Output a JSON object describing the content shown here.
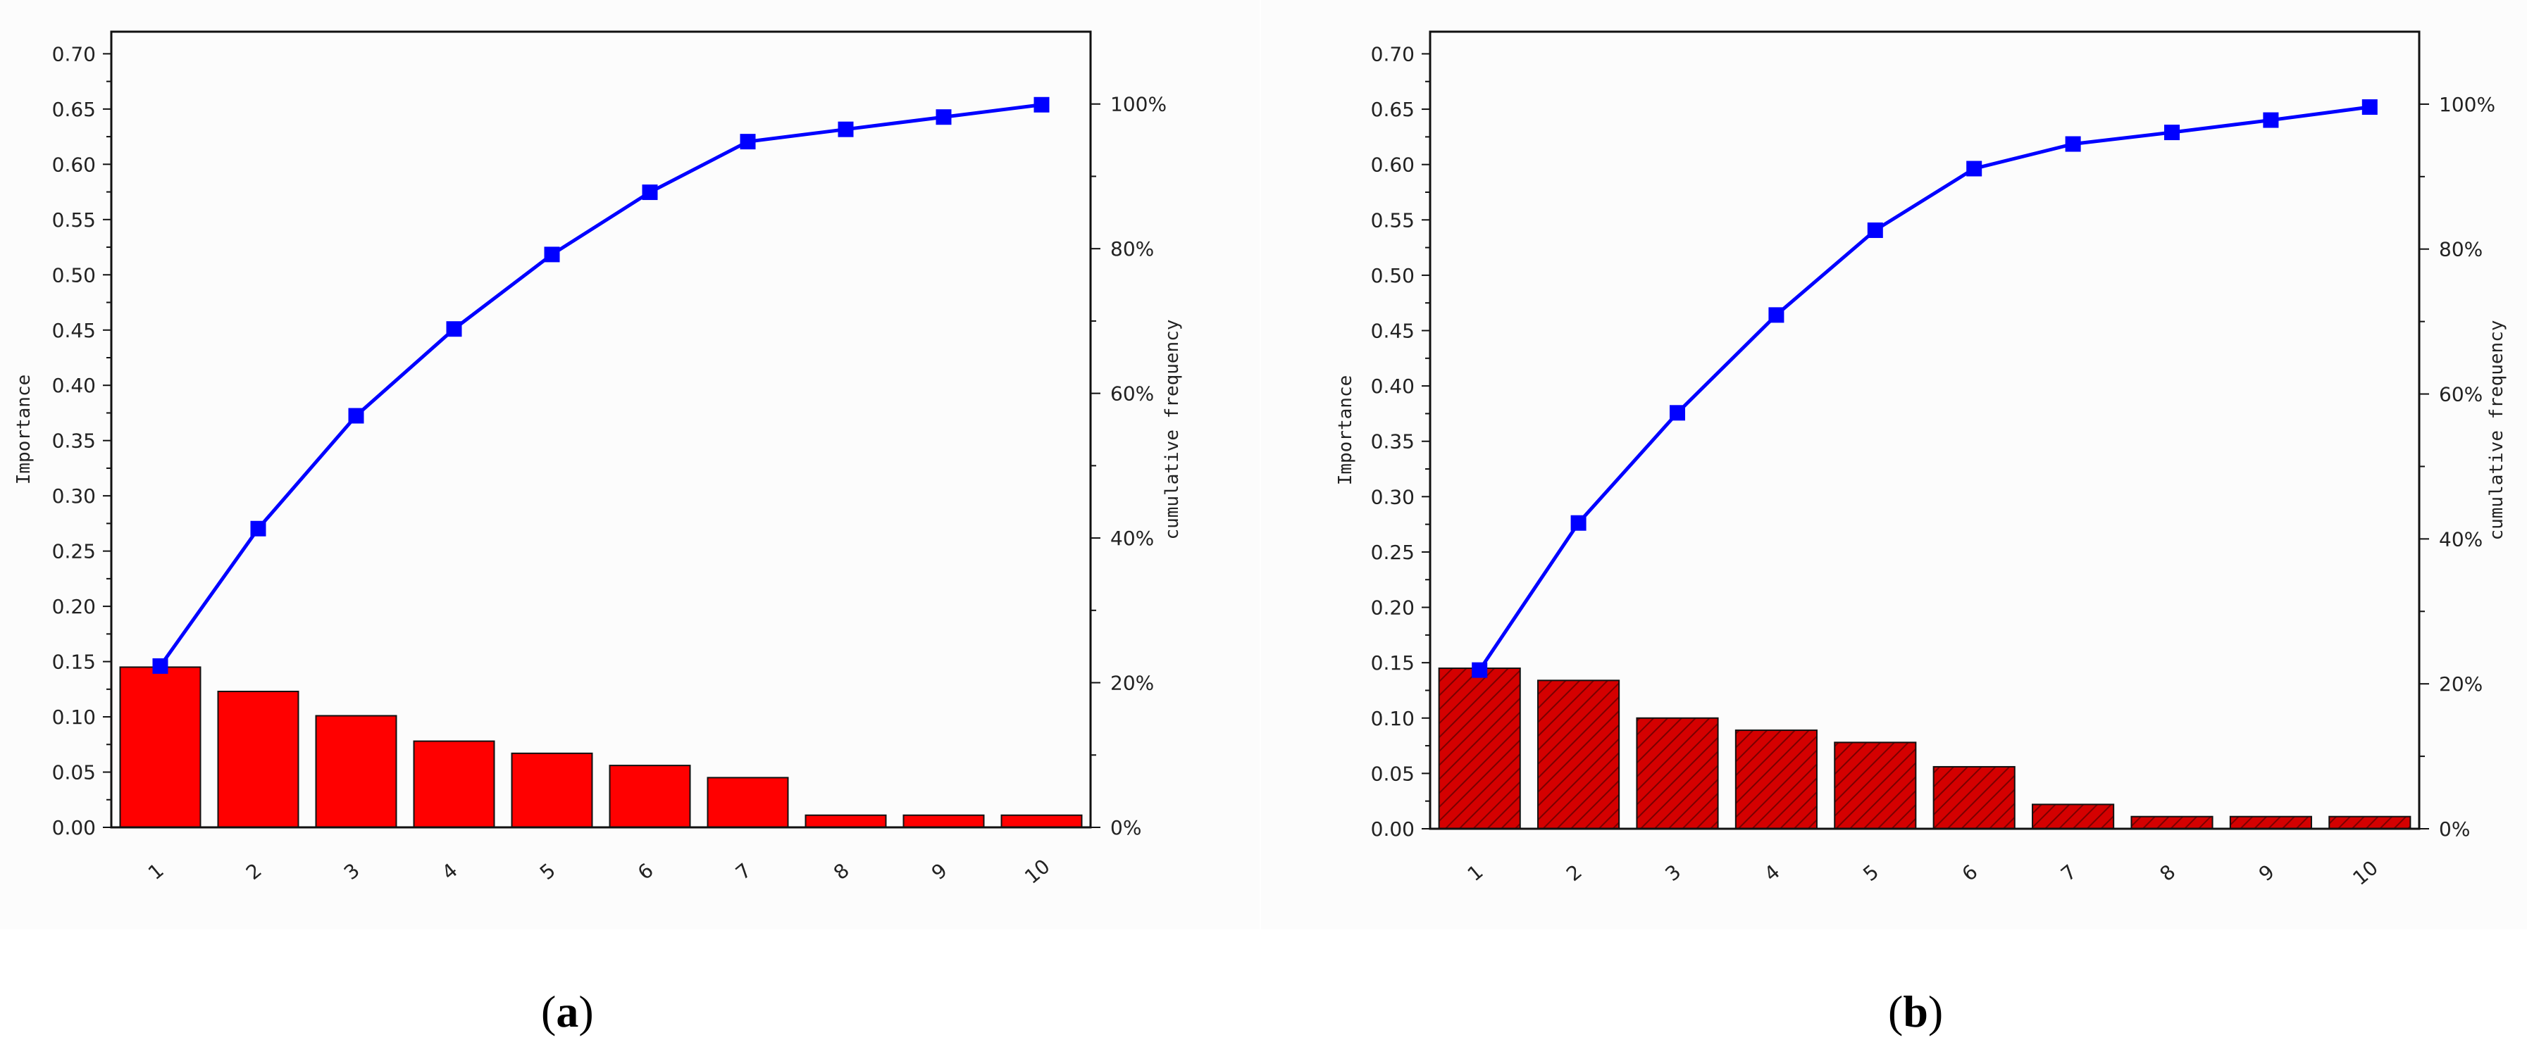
{
  "chart_data": [
    {
      "type": "bar",
      "panel_label": "a",
      "categories": [
        "1",
        "2",
        "3",
        "4",
        "5",
        "6",
        "7",
        "8",
        "9",
        "10"
      ],
      "values": [
        0.145,
        0.123,
        0.101,
        0.078,
        0.067,
        0.056,
        0.045,
        0.011,
        0.011,
        0.011
      ],
      "bar_fill": "#ff0000",
      "bar_hatch": false,
      "cumulative": [
        22.3,
        41.3,
        56.9,
        68.9,
        79.2,
        87.8,
        94.8,
        96.5,
        98.2,
        99.9
      ],
      "line_color": "#0000ff",
      "ylabel": "Importance",
      "y2label": "cumulative frequency",
      "ylim": [
        0,
        0.72
      ],
      "yticks": [
        "0.00",
        "0.05",
        "0.10",
        "0.15",
        "0.20",
        "0.25",
        "0.30",
        "0.35",
        "0.40",
        "0.45",
        "0.50",
        "0.55",
        "0.60",
        "0.65",
        "0.70"
      ],
      "y2lim": [
        0,
        110
      ],
      "y2ticks": [
        "0%",
        "20%",
        "40%",
        "60%",
        "80%",
        "100%"
      ]
    },
    {
      "type": "bar",
      "panel_label": "b",
      "categories": [
        "1",
        "2",
        "3",
        "4",
        "5",
        "6",
        "7",
        "8",
        "9",
        "10"
      ],
      "values": [
        0.145,
        0.134,
        0.1,
        0.089,
        0.078,
        0.056,
        0.022,
        0.011,
        0.011,
        0.011
      ],
      "bar_fill": "#d40000",
      "bar_hatch": true,
      "cumulative": [
        21.9,
        42.2,
        57.4,
        70.9,
        82.6,
        91.1,
        94.5,
        96.1,
        97.8,
        99.6
      ],
      "line_color": "#0000ff",
      "ylabel": "Importance",
      "y2label": "cumulative frequency",
      "ylim": [
        0,
        0.72
      ],
      "yticks": [
        "0.00",
        "0.05",
        "0.10",
        "0.15",
        "0.20",
        "0.25",
        "0.30",
        "0.35",
        "0.40",
        "0.45",
        "0.50",
        "0.55",
        "0.60",
        "0.65",
        "0.70"
      ],
      "y2lim": [
        0,
        110
      ],
      "y2ticks": [
        "0%",
        "20%",
        "40%",
        "60%",
        "80%",
        "100%"
      ]
    }
  ]
}
